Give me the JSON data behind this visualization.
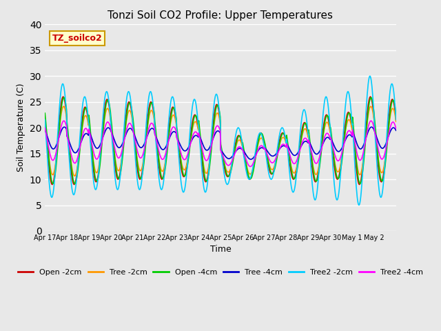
{
  "title": "Tonzi Soil CO2 Profile: Upper Temperatures",
  "xlabel": "Time",
  "ylabel": "Soil Temperature (C)",
  "annotation": "TZ_soilco2",
  "ylim": [
    0,
    40
  ],
  "yticks": [
    0,
    5,
    10,
    15,
    20,
    25,
    30,
    35,
    40
  ],
  "series_colors": {
    "Open -2cm": "#cc0000",
    "Tree -2cm": "#ff9900",
    "Open -4cm": "#00cc00",
    "Tree -4cm": "#0000cc",
    "Tree2 -2cm": "#00ccff",
    "Tree2 -4cm": "#ff00ff"
  },
  "xtick_labels": [
    "Apr 17",
    "Apr 18",
    "Apr 19",
    "Apr 20",
    "Apr 21",
    "Apr 22",
    "Apr 23",
    "Apr 24",
    "Apr 25",
    "Apr 26",
    "Apr 27",
    "Apr 28",
    "Apr 29",
    "Apr 30",
    "May 1",
    "May 2"
  ],
  "bg_color": "#e8e8e8",
  "plot_bg": "#e8e8e8",
  "grid_color": "#ffffff",
  "annotation_bg": "#ffffcc",
  "annotation_border": "#cc9900",
  "n_days": 16,
  "pts_per_day": 48,
  "base_mean": 17.5,
  "open2_amp": [
    8.5,
    7.5,
    8.0,
    7.5,
    7.5,
    7.0,
    6.0,
    7.5,
    4.0,
    4.5,
    4.0,
    5.5,
    6.5,
    6.5,
    8.5,
    8.0
  ],
  "tree2_amp": [
    11.0,
    9.5,
    9.5,
    9.5,
    9.5,
    9.0,
    9.0,
    9.5,
    5.5,
    4.5,
    5.0,
    8.0,
    10.0,
    10.5,
    12.5,
    11.0
  ],
  "day_mean": [
    17.5,
    16.5,
    17.5,
    17.5,
    17.5,
    17.0,
    16.5,
    17.0,
    14.5,
    14.5,
    15.0,
    15.5,
    16.0,
    16.5,
    17.5,
    17.5
  ]
}
